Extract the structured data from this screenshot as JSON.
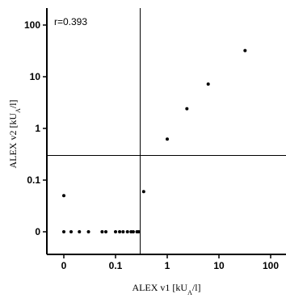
{
  "chart_data": {
    "type": "scatter",
    "x_axis": {
      "title_text": "ALEX v1 [kU",
      "title_sub": "A",
      "title_end": "/l]",
      "scale": "pseudo-log",
      "ticks": [
        {
          "value": 0,
          "label": "0"
        },
        {
          "value": 0.1,
          "label": "0.1"
        },
        {
          "value": 1,
          "label": "1"
        },
        {
          "value": 10,
          "label": "10"
        },
        {
          "value": 100,
          "label": "100"
        }
      ]
    },
    "y_axis": {
      "title_text": "ALEX v2 [kU",
      "title_sub": "A",
      "title_end": "/l]",
      "scale": "pseudo-log",
      "ticks": [
        {
          "value": 0,
          "label": "0"
        },
        {
          "value": 0.1,
          "label": "0.1"
        },
        {
          "value": 1,
          "label": "1"
        },
        {
          "value": 10,
          "label": "10"
        },
        {
          "value": 100,
          "label": "100"
        }
      ]
    },
    "annotation": "r=0.393",
    "reference_lines": {
      "x": 0.3,
      "y": 0.3
    },
    "points": [
      {
        "x": 0,
        "y": 0.05
      },
      {
        "x": 0,
        "y": 0
      },
      {
        "x": 0.005,
        "y": 0
      },
      {
        "x": 0.02,
        "y": 0
      },
      {
        "x": 0.03,
        "y": 0
      },
      {
        "x": 0.055,
        "y": 0
      },
      {
        "x": 0.065,
        "y": 0
      },
      {
        "x": 0.1,
        "y": 0
      },
      {
        "x": 0.12,
        "y": 0
      },
      {
        "x": 0.14,
        "y": 0
      },
      {
        "x": 0.17,
        "y": 0
      },
      {
        "x": 0.2,
        "y": 0
      },
      {
        "x": 0.22,
        "y": 0
      },
      {
        "x": 0.26,
        "y": 0
      },
      {
        "x": 0.28,
        "y": 0
      },
      {
        "x": 0.35,
        "y": 0.06
      },
      {
        "x": 1.0,
        "y": 0.62
      },
      {
        "x": 2.4,
        "y": 2.4
      },
      {
        "x": 6.2,
        "y": 7.2
      },
      {
        "x": 32,
        "y": 32
      }
    ],
    "grid": false
  }
}
